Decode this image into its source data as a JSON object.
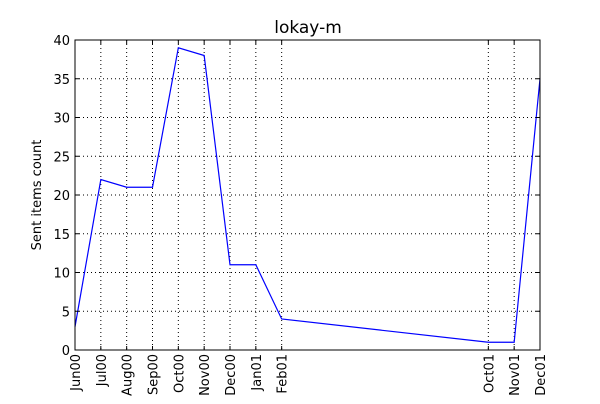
{
  "chart_data": {
    "type": "line",
    "title": "lokay-m",
    "xlabel": "",
    "ylabel": "Sent items count",
    "x": [
      "2000-06",
      "2000-07",
      "2000-08",
      "2000-09",
      "2000-10",
      "2000-11",
      "2000-12",
      "2001-01",
      "2001-02",
      "2001-10",
      "2001-11",
      "2001-12"
    ],
    "xtick_labels": [
      "Jun00",
      "Jul00",
      "Aug00",
      "Sep00",
      "Oct00",
      "Nov00",
      "Dec00",
      "Jan01",
      "Feb01",
      "Oct01",
      "Nov01",
      "Dec01"
    ],
    "series": [
      {
        "values": [
          3,
          22,
          21,
          21,
          39,
          38,
          11,
          11,
          4,
          1,
          1,
          35
        ],
        "color": "#0000ff"
      }
    ],
    "ylim": [
      0,
      40
    ],
    "yticks": [
      0,
      5,
      10,
      15,
      20,
      25,
      30,
      35,
      40
    ],
    "grid": true
  }
}
